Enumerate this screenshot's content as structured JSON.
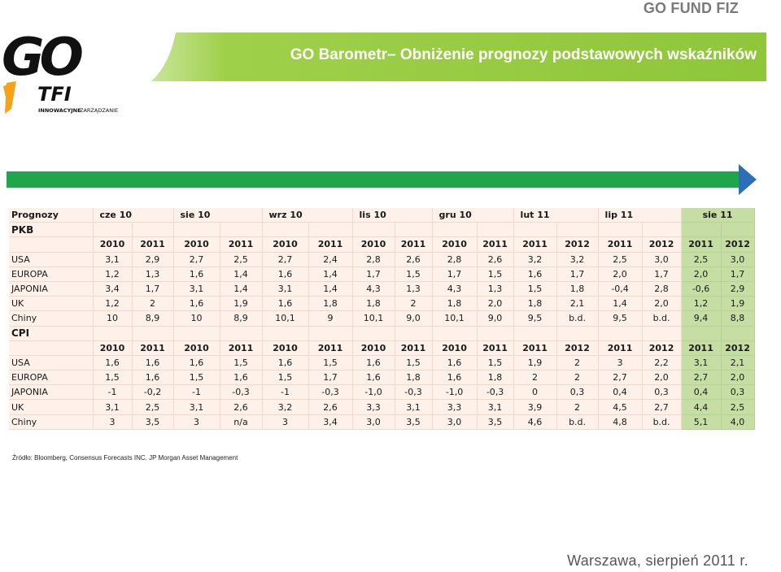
{
  "header": {
    "brand": "GO FUND FIZ",
    "title": "GO Barometr– Obniżenie prognozy podstawowych wskaźników"
  },
  "logo": {
    "go_text": "GO",
    "tfi_text": "TFI",
    "tagline_bold": "INNOWACYJNE",
    "tagline_rest": "ZARZĄDZANIE"
  },
  "colors": {
    "banner_green": "#8fc63a",
    "arrow_green": "#1fa54a",
    "arrow_head_blue": "#2d6fb6",
    "logo_orange": "#f5a21b",
    "table_highlight": "#c6dda4",
    "table_cell": "#fdf1ea"
  },
  "table": {
    "header_label": "Prognozy",
    "periods": [
      "cze 10",
      "sie 10",
      "wrz 10",
      "lis 10",
      "gru 10",
      "lut 11",
      "lip 11",
      "sie 11"
    ],
    "sections": [
      {
        "name": "PKB",
        "years": [
          "2010",
          "2011",
          "2010",
          "2011",
          "2010",
          "2011",
          "2010",
          "2011",
          "2010",
          "2011",
          "2011",
          "2012",
          "2011",
          "2012",
          "2011",
          "2012"
        ],
        "rows": [
          {
            "label": "USA",
            "values": [
              "3,1",
              "2,9",
              "2,7",
              "2,5",
              "2,7",
              "2,4",
              "2,8",
              "2,6",
              "2,8",
              "2,6",
              "3,2",
              "3,2",
              "2,5",
              "3,0",
              "2,5",
              "3,0"
            ]
          },
          {
            "label": "EUROPA",
            "values": [
              "1,2",
              "1,3",
              "1,6",
              "1,4",
              "1,6",
              "1,4",
              "1,7",
              "1,5",
              "1,7",
              "1,5",
              "1,6",
              "1,7",
              "2,0",
              "1,7",
              "2,0",
              "1,7"
            ]
          },
          {
            "label": "JAPONIA",
            "values": [
              "3,4",
              "1,7",
              "3,1",
              "1,4",
              "3,1",
              "1,4",
              "4,3",
              "1,3",
              "4,3",
              "1,3",
              "1,5",
              "1,8",
              "-0,4",
              "2,8",
              "-0,6",
              "2,9"
            ]
          },
          {
            "label": "UK",
            "values": [
              "1,2",
              "2",
              "1,6",
              "1,9",
              "1,6",
              "1,8",
              "1,8",
              "2",
              "1,8",
              "2,0",
              "1,8",
              "2,1",
              "1,4",
              "2,0",
              "1,2",
              "1,9"
            ]
          },
          {
            "label": "Chiny",
            "values": [
              "10",
              "8,9",
              "10",
              "8,9",
              "10,1",
              "9",
              "10,1",
              "9,0",
              "10,1",
              "9,0",
              "9,5",
              "b.d.",
              "9,5",
              "b.d.",
              "9,4",
              "8,8"
            ]
          }
        ]
      },
      {
        "name": "CPI",
        "years": [
          "2010",
          "2011",
          "2010",
          "2011",
          "2010",
          "2011",
          "2010",
          "2011",
          "2010",
          "2011",
          "2011",
          "2012",
          "2011",
          "2012",
          "2011",
          "2012"
        ],
        "rows": [
          {
            "label": "USA",
            "values": [
              "1,6",
              "1,6",
              "1,6",
              "1,5",
              "1,6",
              "1,5",
              "1,6",
              "1,5",
              "1,6",
              "1,5",
              "1,9",
              "2",
              "3",
              "2,2",
              "3,1",
              "2,1"
            ]
          },
          {
            "label": "EUROPA",
            "values": [
              "1,5",
              "1,6",
              "1,5",
              "1,6",
              "1,5",
              "1,7",
              "1,6",
              "1,8",
              "1,6",
              "1,8",
              "2",
              "2",
              "2,7",
              "2,0",
              "2,7",
              "2,0"
            ]
          },
          {
            "label": "JAPONIA",
            "values": [
              "-1",
              "-0,2",
              "-1",
              "-0,3",
              "-1",
              "-0,3",
              "-1,0",
              "-0,3",
              "-1,0",
              "-0,3",
              "0",
              "0,3",
              "0,4",
              "0,3",
              "0,4",
              "0,3"
            ]
          },
          {
            "label": "UK",
            "values": [
              "3,1",
              "2,5",
              "3,1",
              "2,6",
              "3,2",
              "2,6",
              "3,3",
              "3,1",
              "3,3",
              "3,1",
              "3,9",
              "2",
              "4,5",
              "2,7",
              "4,4",
              "2,5"
            ]
          },
          {
            "label": "Chiny",
            "values": [
              "3",
              "3,5",
              "3",
              "n/a",
              "3",
              "3,4",
              "3,0",
              "3,5",
              "3,0",
              "3,5",
              "4,6",
              "b.d.",
              "4,8",
              "b.d.",
              "5,1",
              "4,0"
            ]
          }
        ]
      }
    ]
  },
  "source": "Źródło: Bloomberg, Consensus Forecasts INC. JP Morgan Asset Management",
  "footer": {
    "date": "Warszawa, sierpień 2011 r."
  }
}
